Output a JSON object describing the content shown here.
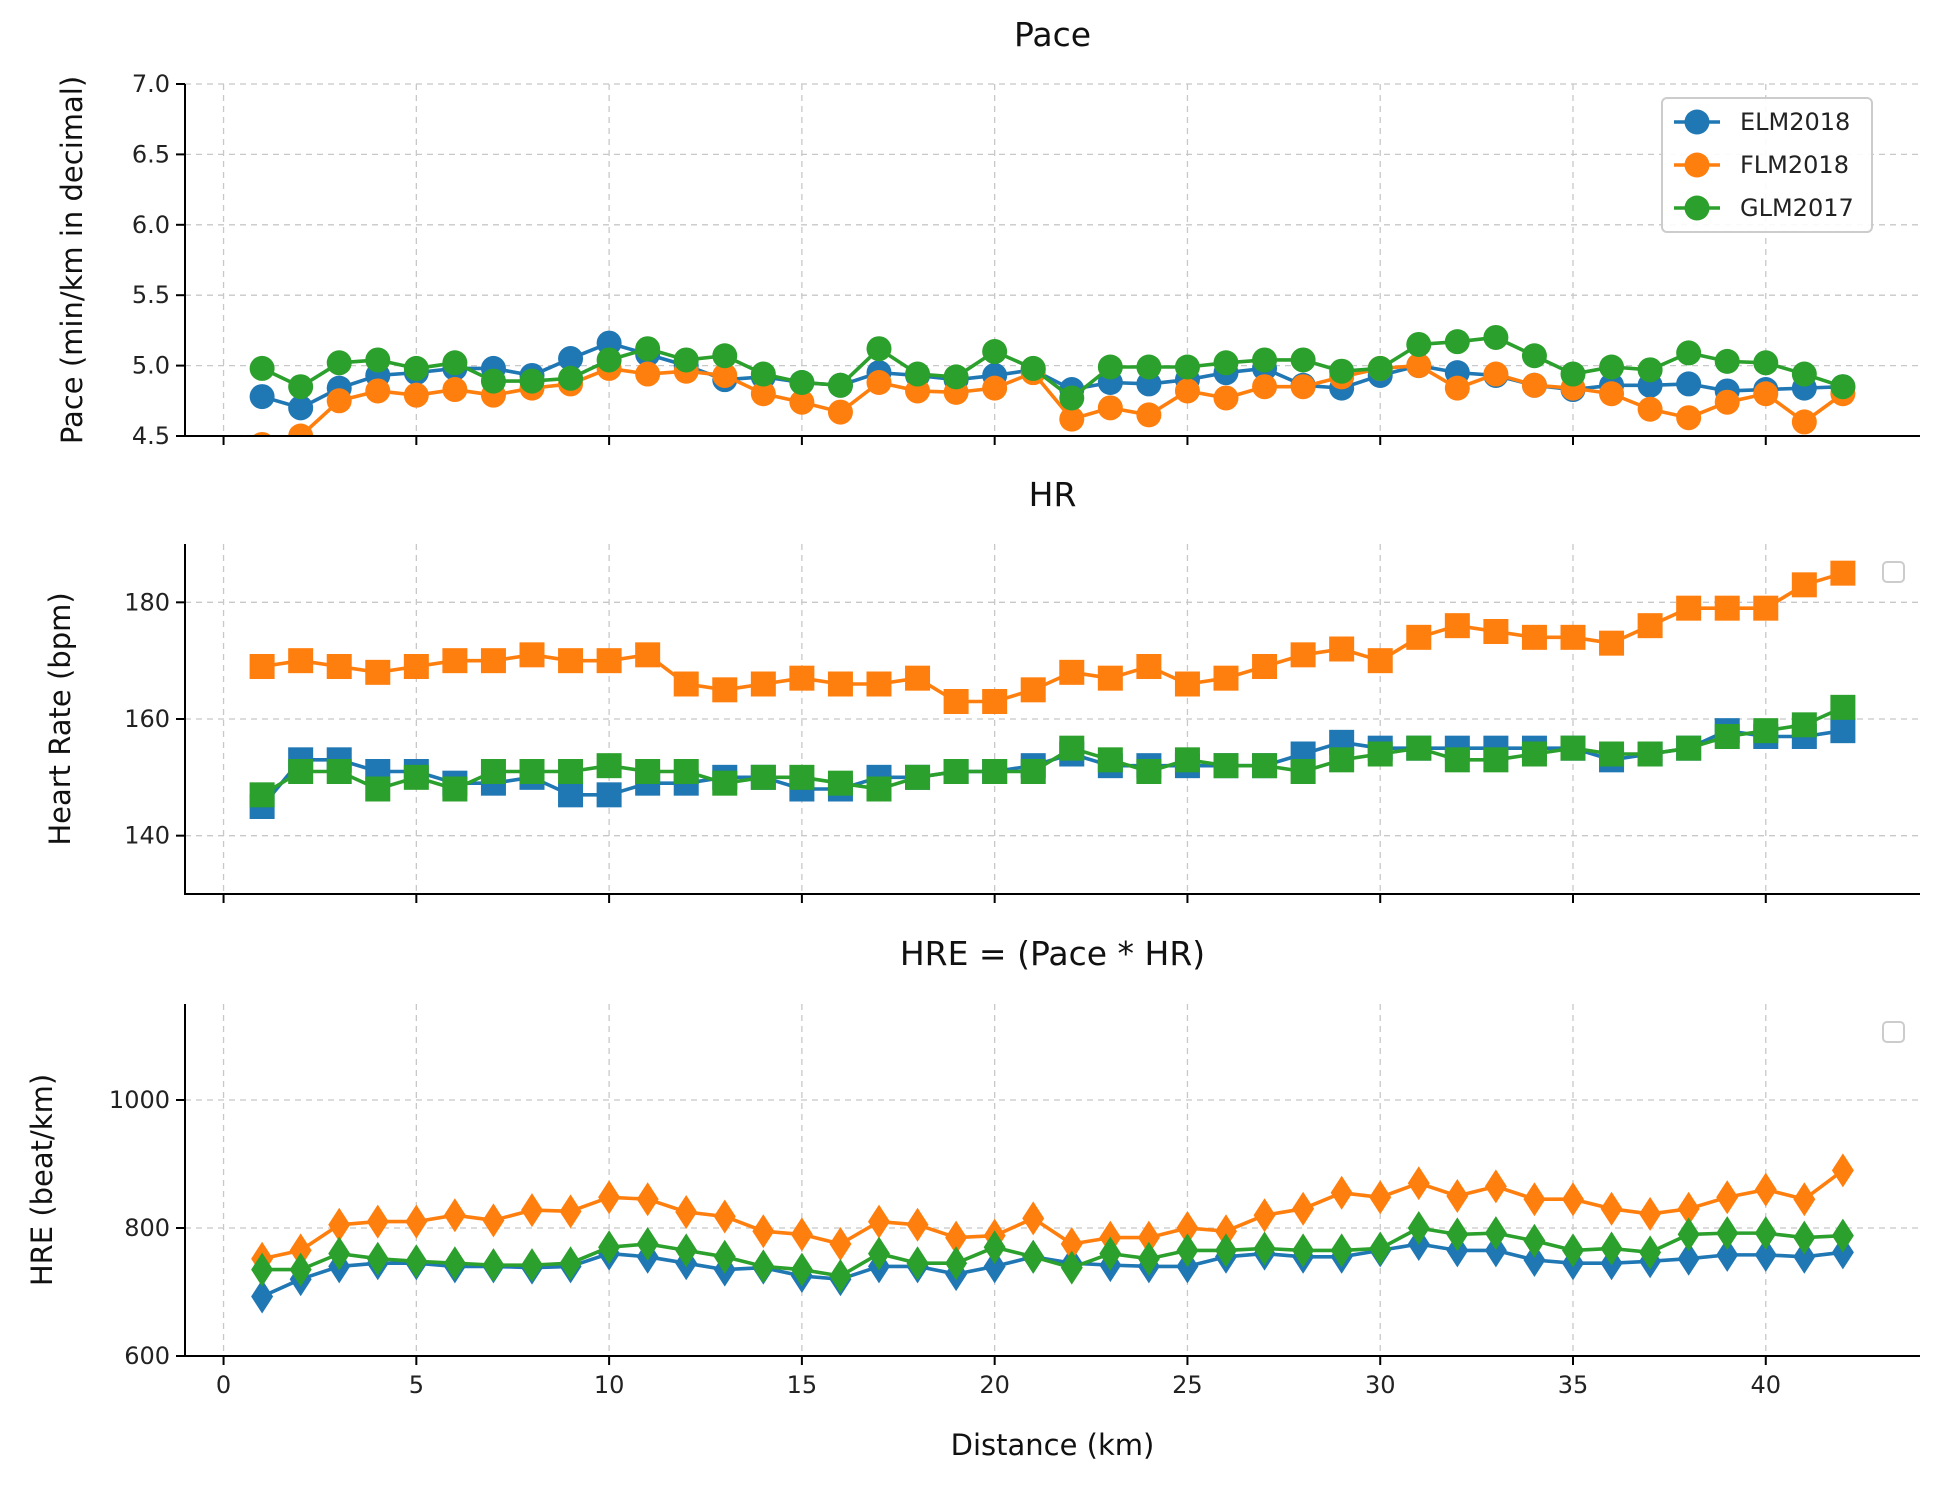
{
  "chart_data": [
    {
      "type": "line",
      "title": "Pace",
      "xlabel": "",
      "ylabel": "Pace (min/km in decimal)",
      "xlim": [
        -1,
        44
      ],
      "ylim": [
        4.5,
        7.0
      ],
      "yticks": [
        4.5,
        5.0,
        5.5,
        6.0,
        6.5,
        7.0
      ],
      "ytick_labels": [
        "4.5",
        "5.0",
        "5.5",
        "6.0",
        "6.5",
        "7.0"
      ],
      "marker": "circle",
      "legend": "top-right",
      "x": [
        1,
        2,
        3,
        4,
        5,
        6,
        7,
        8,
        9,
        10,
        11,
        12,
        13,
        14,
        15,
        16,
        17,
        18,
        19,
        20,
        21,
        22,
        23,
        24,
        25,
        26,
        27,
        28,
        29,
        30,
        31,
        32,
        33,
        34,
        35,
        36,
        37,
        38,
        39,
        40,
        41,
        42
      ],
      "series": [
        {
          "name": "ELM2018",
          "color": "#1f77b4",
          "values": [
            4.78,
            4.7,
            4.84,
            4.93,
            4.95,
            4.98,
            4.98,
            4.93,
            5.05,
            5.16,
            5.08,
            5.0,
            4.9,
            4.92,
            4.88,
            4.86,
            4.95,
            4.93,
            4.9,
            4.93,
            4.97,
            4.83,
            4.88,
            4.87,
            4.9,
            4.95,
            4.98,
            4.86,
            4.84,
            4.93,
            5.0,
            4.95,
            4.93,
            4.86,
            4.83,
            4.86,
            4.86,
            4.87,
            4.82,
            4.83,
            4.84,
            4.85
          ]
        },
        {
          "name": "FLM2018",
          "color": "#ff7f0e",
          "values": [
            4.44,
            4.5,
            4.75,
            4.82,
            4.79,
            4.83,
            4.79,
            4.84,
            4.87,
            4.98,
            4.94,
            4.96,
            4.93,
            4.8,
            4.74,
            4.67,
            4.88,
            4.82,
            4.81,
            4.84,
            4.95,
            4.62,
            4.7,
            4.65,
            4.82,
            4.77,
            4.85,
            4.85,
            4.92,
            4.98,
            5.0,
            4.84,
            4.94,
            4.86,
            4.84,
            4.8,
            4.69,
            4.63,
            4.74,
            4.8,
            4.6,
            4.8
          ]
        },
        {
          "name": "GLM2017",
          "color": "#2ca02c",
          "values": [
            4.98,
            4.85,
            5.02,
            5.04,
            4.98,
            5.02,
            4.89,
            4.89,
            4.91,
            5.04,
            5.12,
            5.04,
            5.07,
            4.94,
            4.88,
            4.86,
            5.12,
            4.94,
            4.92,
            5.1,
            4.98,
            4.77,
            4.99,
            4.99,
            4.99,
            5.02,
            5.04,
            5.04,
            4.96,
            4.98,
            5.15,
            5.17,
            5.2,
            5.07,
            4.94,
            4.99,
            4.97,
            5.09,
            5.03,
            5.02,
            4.94,
            4.85
          ]
        }
      ]
    },
    {
      "type": "line",
      "title": "HR",
      "xlabel": "",
      "ylabel": "Heart Rate (bpm)",
      "xlim": [
        -1,
        44
      ],
      "ylim": [
        130,
        190
      ],
      "yticks": [
        140,
        160,
        180
      ],
      "ytick_labels": [
        "140",
        "160",
        "180"
      ],
      "marker": "square",
      "legend": "top-right-empty",
      "x": [
        1,
        2,
        3,
        4,
        5,
        6,
        7,
        8,
        9,
        10,
        11,
        12,
        13,
        14,
        15,
        16,
        17,
        18,
        19,
        20,
        21,
        22,
        23,
        24,
        25,
        26,
        27,
        28,
        29,
        30,
        31,
        32,
        33,
        34,
        35,
        36,
        37,
        38,
        39,
        40,
        41,
        42
      ],
      "series": [
        {
          "name": "ELM2018",
          "color": "#1f77b4",
          "values": [
            145,
            153,
            153,
            151,
            151,
            149,
            149,
            150,
            147,
            147,
            149,
            149,
            150,
            150,
            148,
            148,
            150,
            150,
            151,
            151,
            152,
            154,
            152,
            152,
            152,
            152,
            152,
            154,
            156,
            155,
            155,
            155,
            155,
            155,
            155,
            153,
            154,
            155,
            158,
            157,
            157,
            158
          ]
        },
        {
          "name": "FLM2018",
          "color": "#ff7f0e",
          "values": [
            169,
            170,
            169,
            168,
            169,
            170,
            170,
            171,
            170,
            170,
            171,
            166,
            165,
            166,
            167,
            166,
            166,
            167,
            163,
            163,
            165,
            168,
            167,
            169,
            166,
            167,
            169,
            171,
            172,
            170,
            174,
            176,
            175,
            174,
            174,
            173,
            176,
            179,
            179,
            179,
            183,
            185
          ]
        },
        {
          "name": "GLM2017",
          "color": "#2ca02c",
          "values": [
            147,
            151,
            151,
            148,
            150,
            148,
            151,
            151,
            151,
            152,
            151,
            151,
            149,
            150,
            150,
            149,
            148,
            150,
            151,
            151,
            151,
            155,
            153,
            151,
            153,
            152,
            152,
            151,
            153,
            154,
            155,
            153,
            153,
            154,
            155,
            154,
            154,
            155,
            157,
            158,
            159,
            162
          ]
        }
      ]
    },
    {
      "type": "line",
      "title": "HRE = (Pace * HR)",
      "xlabel": "Distance (km)",
      "ylabel": "HRE (beat/km)",
      "xlim": [
        -1,
        44
      ],
      "ylim": [
        600,
        1150
      ],
      "yticks": [
        600,
        800,
        1000
      ],
      "ytick_labels": [
        "600",
        "800",
        "1000"
      ],
      "xticks": [
        0,
        5,
        10,
        15,
        20,
        25,
        30,
        35,
        40
      ],
      "xtick_labels": [
        "0",
        "5",
        "10",
        "15",
        "20",
        "25",
        "30",
        "35",
        "40"
      ],
      "marker": "diamond",
      "legend": "top-right-empty",
      "x": [
        1,
        2,
        3,
        4,
        5,
        6,
        7,
        8,
        9,
        10,
        11,
        12,
        13,
        14,
        15,
        16,
        17,
        18,
        19,
        20,
        21,
        22,
        23,
        24,
        25,
        26,
        27,
        28,
        29,
        30,
        31,
        32,
        33,
        34,
        35,
        36,
        37,
        38,
        39,
        40,
        41,
        42
      ],
      "series": [
        {
          "name": "ELM2018",
          "color": "#1f77b4",
          "values": [
            693,
            720,
            740,
            745,
            745,
            740,
            740,
            738,
            740,
            760,
            755,
            745,
            735,
            738,
            725,
            720,
            740,
            740,
            728,
            740,
            755,
            745,
            742,
            740,
            740,
            755,
            760,
            755,
            755,
            765,
            775,
            765,
            765,
            750,
            745,
            745,
            748,
            752,
            758,
            758,
            755,
            762
          ]
        },
        {
          "name": "FLM2018",
          "color": "#ff7f0e",
          "values": [
            752,
            765,
            805,
            810,
            810,
            820,
            812,
            828,
            826,
            848,
            845,
            825,
            818,
            795,
            790,
            775,
            810,
            805,
            785,
            788,
            815,
            775,
            785,
            785,
            800,
            795,
            820,
            830,
            855,
            848,
            870,
            850,
            865,
            845,
            845,
            830,
            822,
            830,
            848,
            860,
            845,
            890
          ]
        },
        {
          "name": "GLM2017",
          "color": "#2ca02c",
          "values": [
            735,
            735,
            760,
            752,
            748,
            745,
            742,
            742,
            745,
            770,
            775,
            765,
            755,
            740,
            735,
            725,
            760,
            745,
            745,
            770,
            755,
            738,
            760,
            752,
            765,
            765,
            768,
            765,
            765,
            768,
            800,
            790,
            792,
            780,
            765,
            768,
            762,
            790,
            792,
            792,
            785,
            788
          ]
        }
      ]
    }
  ]
}
